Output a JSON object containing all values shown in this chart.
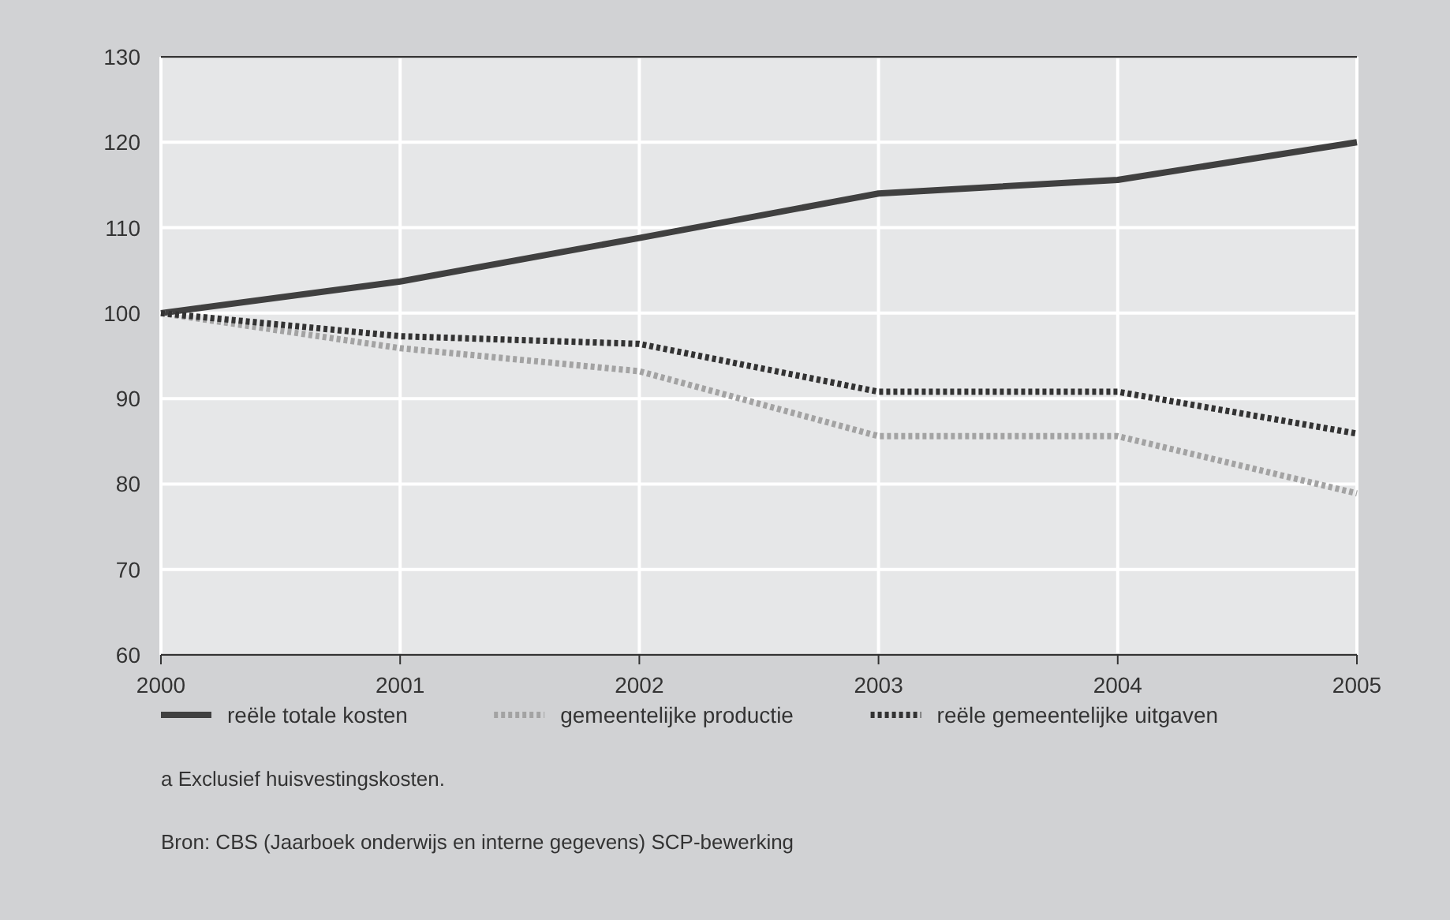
{
  "chart_data": {
    "type": "line",
    "x": [
      2000,
      2001,
      2002,
      2003,
      2004,
      2005
    ],
    "series": [
      {
        "name": "reële totale kosten",
        "color": "#404040",
        "line_style": "solid",
        "values": [
          100,
          103.7,
          108.8,
          114.0,
          115.6,
          120.0
        ]
      },
      {
        "name": "gemeentelijke productie",
        "color": "#a3a3a3",
        "line_style": "dotted",
        "values": [
          100,
          95.9,
          93.2,
          85.6,
          85.6,
          78.9
        ]
      },
      {
        "name": "reële gemeentelijke uitgaven",
        "color": "#333333",
        "line_style": "dotted",
        "values": [
          100,
          97.3,
          96.4,
          90.8,
          90.8,
          85.9
        ]
      }
    ],
    "xlim": [
      2000,
      2005
    ],
    "xticks": [
      2000,
      2001,
      2002,
      2003,
      2004,
      2005
    ],
    "ylim": [
      60,
      130
    ],
    "yticks": [
      60,
      70,
      80,
      90,
      100,
      110,
      120,
      130
    ],
    "grid": true,
    "legend": "bottom",
    "marker": "none",
    "annotations": [
      "a   Exclusief huisvestingskosten.",
      "Bron: CBS (Jaarboek onderwijs en interne gegevens) SCP-bewerking"
    ]
  }
}
